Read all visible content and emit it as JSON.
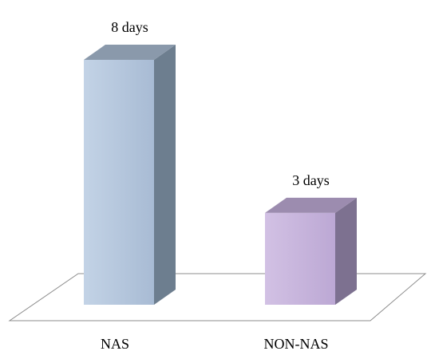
{
  "chart_data": {
    "type": "bar",
    "style": "3d-column",
    "categories": [
      "NAS",
      "NON-NAS"
    ],
    "values": [
      8,
      3
    ],
    "data_labels": [
      "8 days",
      "3 days"
    ],
    "unit": "days",
    "colors": {
      "NAS": {
        "front": "#b3c5dc",
        "side": "#6d7e8f",
        "top": "#8a99ab"
      },
      "NON-NAS": {
        "front": "#c7b4dc",
        "side": "#7d7190",
        "top": "#9c8caf"
      }
    },
    "floor_color": "#ffffff",
    "floor_stroke": "#8c8c8c",
    "title": "",
    "xlabel": "",
    "ylabel": "",
    "ylim": [
      0,
      8
    ],
    "grid": false,
    "legend": "none"
  }
}
